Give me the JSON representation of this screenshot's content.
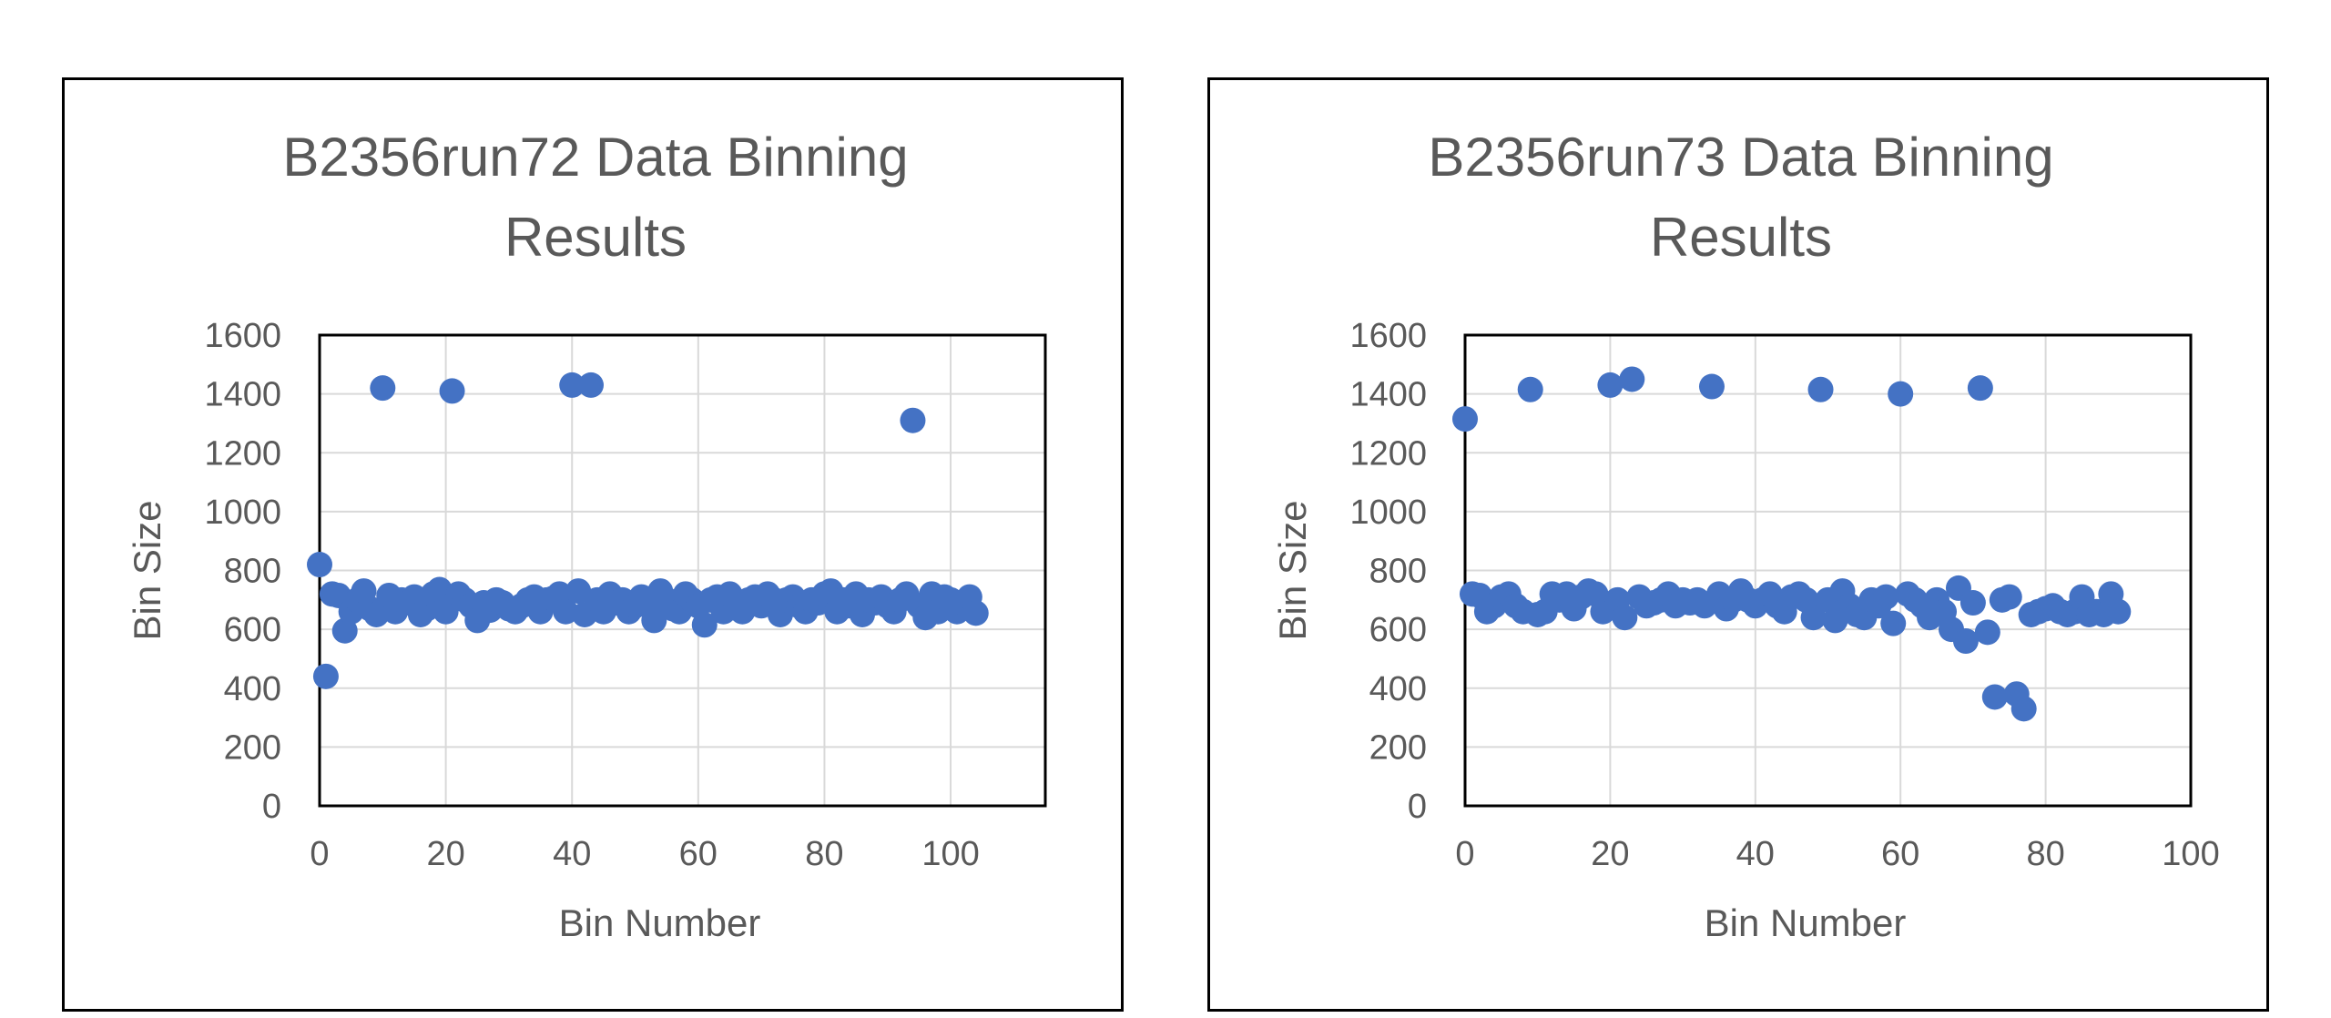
{
  "chart_data": [
    {
      "type": "scatter",
      "title": "B2356run72 Data Binning Results",
      "title_lines": [
        "B2356run72 Data Binning",
        "Results"
      ],
      "xlabel": "Bin Number",
      "ylabel": "Bin Size",
      "xlim": [
        0,
        115
      ],
      "ylim": [
        0,
        1600
      ],
      "xticks": [
        0,
        20,
        40,
        60,
        80,
        100
      ],
      "yticks": [
        0,
        200,
        400,
        600,
        800,
        1000,
        1200,
        1400,
        1600
      ],
      "grid": true,
      "marker_color": "#4472C4",
      "x": [
        0,
        1,
        2,
        3,
        4,
        5,
        6,
        7,
        8,
        9,
        10,
        11,
        12,
        13,
        14,
        15,
        16,
        17,
        18,
        19,
        20,
        21,
        22,
        23,
        24,
        25,
        26,
        27,
        28,
        29,
        30,
        31,
        32,
        33,
        34,
        35,
        36,
        37,
        38,
        39,
        40,
        41,
        42,
        43,
        44,
        45,
        46,
        47,
        48,
        49,
        50,
        51,
        52,
        53,
        54,
        55,
        56,
        57,
        58,
        59,
        60,
        61,
        62,
        63,
        64,
        65,
        66,
        67,
        68,
        69,
        70,
        71,
        72,
        73,
        74,
        75,
        76,
        77,
        78,
        79,
        80,
        81,
        82,
        83,
        84,
        85,
        86,
        87,
        88,
        89,
        90,
        91,
        92,
        93,
        94,
        95,
        96,
        97,
        98,
        99,
        100,
        101,
        102,
        103,
        104
      ],
      "y": [
        820,
        440,
        720,
        715,
        595,
        660,
        700,
        730,
        670,
        650,
        1420,
        715,
        660,
        700,
        690,
        710,
        650,
        670,
        720,
        735,
        660,
        1410,
        720,
        700,
        680,
        630,
        690,
        665,
        700,
        690,
        670,
        660,
        680,
        700,
        710,
        660,
        700,
        705,
        720,
        660,
        1430,
        730,
        650,
        1430,
        700,
        660,
        720,
        690,
        700,
        660,
        680,
        710,
        690,
        630,
        730,
        700,
        670,
        660,
        720,
        700,
        680,
        615,
        700,
        710,
        660,
        720,
        680,
        660,
        700,
        710,
        680,
        720,
        700,
        650,
        700,
        710,
        680,
        660,
        700,
        690,
        720,
        730,
        660,
        700,
        680,
        720,
        650,
        700,
        690,
        710,
        680,
        660,
        700,
        720,
        1310,
        680,
        640,
        720,
        660,
        710,
        700,
        660,
        690,
        710,
        655
      ]
    },
    {
      "type": "scatter",
      "title": "B2356run73 Data Binning Results",
      "title_lines": [
        "B2356run73 Data Binning",
        "Results"
      ],
      "xlabel": "Bin Number",
      "ylabel": "Bin Size",
      "xlim": [
        0,
        100
      ],
      "ylim": [
        0,
        1600
      ],
      "xticks": [
        0,
        20,
        40,
        60,
        80,
        100
      ],
      "yticks": [
        0,
        200,
        400,
        600,
        800,
        1000,
        1200,
        1400,
        1600
      ],
      "grid": true,
      "marker_color": "#4472C4",
      "x": [
        0,
        1,
        2,
        3,
        4,
        5,
        6,
        7,
        8,
        9,
        10,
        11,
        12,
        13,
        14,
        15,
        16,
        17,
        18,
        19,
        20,
        21,
        22,
        23,
        24,
        25,
        26,
        27,
        28,
        29,
        30,
        31,
        32,
        33,
        34,
        35,
        36,
        37,
        38,
        39,
        40,
        41,
        42,
        43,
        44,
        45,
        46,
        47,
        48,
        49,
        50,
        51,
        52,
        53,
        54,
        55,
        56,
        57,
        58,
        59,
        60,
        61,
        62,
        63,
        64,
        65,
        66,
        67,
        68,
        69,
        70,
        71,
        72,
        73,
        74,
        75,
        76,
        77,
        78,
        79,
        80,
        81,
        82,
        83,
        84,
        85,
        86,
        87,
        88,
        89,
        90
      ],
      "y": [
        1315,
        720,
        715,
        660,
        680,
        710,
        720,
        680,
        660,
        1415,
        650,
        660,
        720,
        700,
        720,
        670,
        710,
        730,
        720,
        660,
        1430,
        700,
        640,
        1450,
        710,
        680,
        690,
        700,
        720,
        680,
        700,
        690,
        700,
        680,
        1425,
        720,
        670,
        700,
        730,
        700,
        680,
        700,
        720,
        680,
        660,
        710,
        720,
        700,
        640,
        1415,
        700,
        630,
        730,
        680,
        650,
        640,
        700,
        680,
        710,
        620,
        1400,
        720,
        700,
        680,
        640,
        700,
        660,
        600,
        740,
        560,
        690,
        1420,
        590,
        370,
        700,
        710,
        380,
        330,
        650,
        660,
        670,
        680,
        660,
        650,
        660,
        710,
        650,
        660,
        650,
        720,
        660
      ]
    }
  ]
}
